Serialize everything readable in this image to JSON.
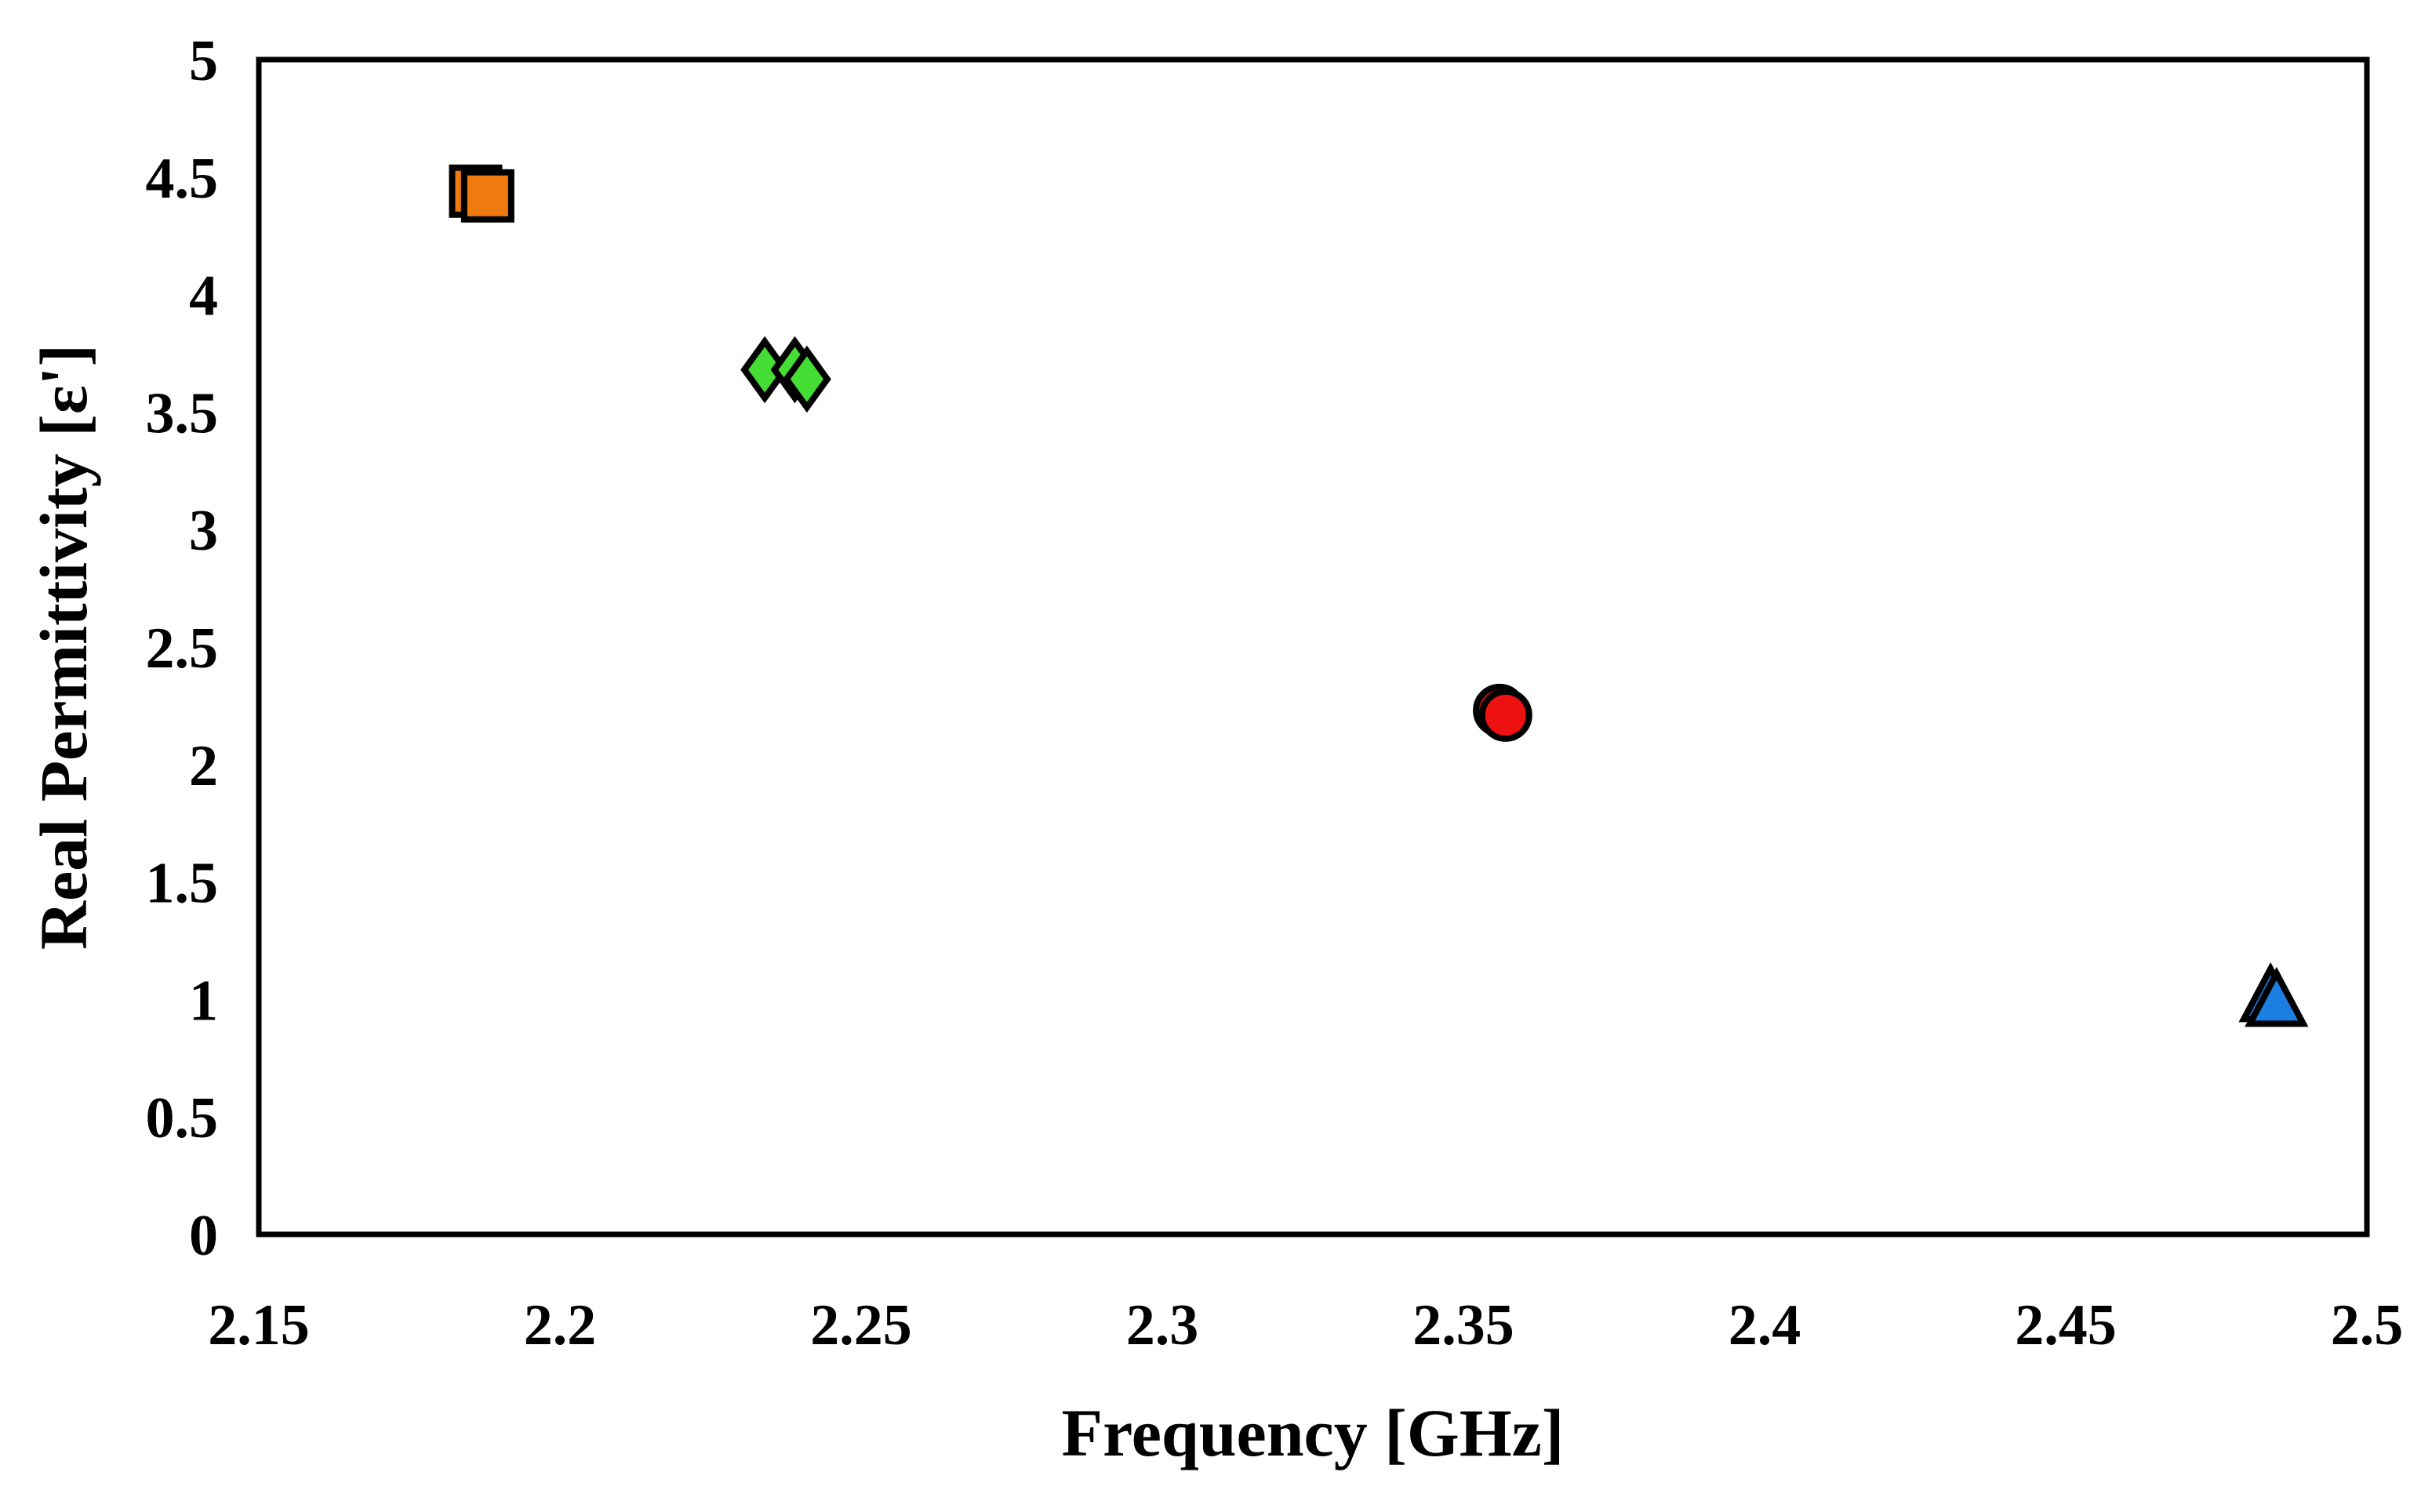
{
  "chart_data": {
    "type": "scatter",
    "title": "",
    "xlabel": "Frequency [GHz]",
    "ylabel": "Real Permittivity [ε']",
    "xlim": [
      2.15,
      2.5
    ],
    "ylim": [
      0,
      5
    ],
    "x_ticks": [
      2.15,
      2.2,
      2.25,
      2.3,
      2.35,
      2.4,
      2.45,
      2.5
    ],
    "x_tick_labels": [
      "2.15",
      "2.2",
      "2.25",
      "2.3",
      "2.35",
      "2.4",
      "2.45",
      "2.5"
    ],
    "y_ticks": [
      0,
      0.5,
      1,
      1.5,
      2,
      2.5,
      3,
      3.5,
      4,
      4.5,
      5
    ],
    "y_tick_labels": [
      "0",
      "0.5",
      "1",
      "1.5",
      "2",
      "2.5",
      "3",
      "3.5",
      "4",
      "4.5",
      "5"
    ],
    "grid": false,
    "legend": "none",
    "series": [
      {
        "marker": "square",
        "color": "#f07a10",
        "points": [
          {
            "x": 2.186,
            "y": 4.44
          },
          {
            "x": 2.188,
            "y": 4.42
          }
        ]
      },
      {
        "marker": "diamond",
        "color": "#44dd33",
        "points": [
          {
            "x": 2.234,
            "y": 3.68
          },
          {
            "x": 2.239,
            "y": 3.68
          },
          {
            "x": 2.241,
            "y": 3.64
          }
        ]
      },
      {
        "marker": "circle",
        "color": "#ee1111",
        "points": [
          {
            "x": 2.356,
            "y": 2.23
          },
          {
            "x": 2.357,
            "y": 2.21
          }
        ]
      },
      {
        "marker": "triangle",
        "color": "#1a7fe0",
        "points": [
          {
            "x": 2.484,
            "y": 1.01
          },
          {
            "x": 2.485,
            "y": 0.99
          }
        ]
      }
    ]
  }
}
